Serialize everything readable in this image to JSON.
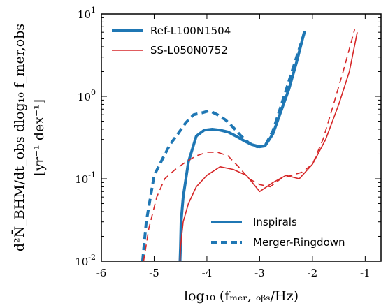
{
  "chart_data": {
    "type": "line",
    "xlabel": "log₁₀ (fₘₑᵣ, ₒᵦₛ/Hz)",
    "ylabel_line1": "d²N̄_BHM/dt_obs dlog₁₀ f_mer,obs",
    "ylabel_line2": "[yr⁻¹ dex⁻¹]",
    "xlim": [
      -6,
      -0.7
    ],
    "ylim_log10": [
      -2,
      1
    ],
    "y_scale": "log",
    "grid": false,
    "x_ticks": [
      -6,
      -5,
      -4,
      -3,
      -2,
      -1
    ],
    "x_tick_labels": [
      "-6",
      "-5",
      "-4",
      "-3",
      "-2",
      "-1"
    ],
    "y_ticks": [
      {
        "base": "10",
        "exp": "-2",
        "value": 0.01
      },
      {
        "base": "10",
        "exp": "-1",
        "value": 0.1
      },
      {
        "base": "10",
        "exp": "0",
        "value": 1
      },
      {
        "base": "10",
        "exp": "1",
        "value": 10
      }
    ],
    "legend_runs": {
      "placement": "top-left",
      "entries": [
        {
          "label": "Ref-L100N1504",
          "color": "#1f77b4",
          "style": "thick"
        },
        {
          "label": "SS-L050N0752",
          "color": "#d62728",
          "style": "thin"
        }
      ]
    },
    "legend_types": {
      "placement": "bottom-right",
      "entries": [
        {
          "label": "Inspirals",
          "color": "#1f77b4",
          "dash": "solid"
        },
        {
          "label": "Merger-Ringdown",
          "color": "#1f77b4",
          "dash": "dashed"
        }
      ]
    },
    "series": [
      {
        "color": "#1f77b4",
        "width": "thick",
        "dash": "solid",
        "x": [
          -4.51,
          -4.5,
          -4.49,
          -4.45,
          -4.35,
          -4.2,
          -4.05,
          -3.9,
          -3.75,
          -3.6,
          -3.45,
          -3.3,
          -3.15,
          -3.0,
          -2.9,
          -2.75,
          -2.6,
          -2.45,
          -2.3,
          -2.15
        ],
        "y": [
          0.01,
          0.015,
          0.03,
          0.06,
          0.16,
          0.33,
          0.39,
          0.4,
          0.39,
          0.37,
          0.33,
          0.29,
          0.26,
          0.245,
          0.25,
          0.35,
          0.65,
          1.2,
          2.6,
          6.2
        ]
      },
      {
        "color": "#1f77b4",
        "width": "thick",
        "dash": "dashed",
        "x": [
          -5.22,
          -5.15,
          -5.0,
          -4.85,
          -4.7,
          -4.55,
          -4.4,
          -4.25,
          -4.1,
          -3.95,
          -3.8,
          -3.65,
          -3.5,
          -3.35,
          -3.2,
          -3.05,
          -2.9,
          -2.75,
          -2.6,
          -2.45,
          -2.3,
          -2.15
        ],
        "y": [
          0.01,
          0.03,
          0.11,
          0.17,
          0.26,
          0.35,
          0.48,
          0.6,
          0.63,
          0.67,
          0.6,
          0.52,
          0.42,
          0.33,
          0.27,
          0.245,
          0.25,
          0.38,
          0.75,
          1.5,
          3.0,
          6.0
        ]
      },
      {
        "color": "#d62728",
        "width": "thin",
        "dash": "solid",
        "x": [
          -4.51,
          -4.5,
          -4.45,
          -4.35,
          -4.2,
          -4.0,
          -3.75,
          -3.5,
          -3.25,
          -3.0,
          -2.75,
          -2.5,
          -2.25,
          -2.0,
          -1.75,
          -1.5,
          -1.3,
          -1.15
        ],
        "y": [
          0.01,
          0.015,
          0.03,
          0.05,
          0.08,
          0.11,
          0.14,
          0.13,
          0.11,
          0.07,
          0.09,
          0.11,
          0.1,
          0.15,
          0.3,
          0.8,
          2.0,
          6.0
        ]
      },
      {
        "color": "#d62728",
        "width": "thin",
        "dash": "dashed",
        "x": [
          -5.2,
          -5.1,
          -4.95,
          -4.8,
          -4.6,
          -4.4,
          -4.2,
          -4.0,
          -3.8,
          -3.6,
          -3.4,
          -3.2,
          -3.0,
          -2.8,
          -2.6,
          -2.4,
          -2.2,
          -2.0,
          -1.8,
          -1.6,
          -1.4,
          -1.2
        ],
        "y": [
          0.01,
          0.025,
          0.06,
          0.1,
          0.13,
          0.16,
          0.19,
          0.21,
          0.21,
          0.19,
          0.14,
          0.1,
          0.085,
          0.08,
          0.1,
          0.11,
          0.12,
          0.15,
          0.3,
          0.8,
          2.2,
          6.5
        ]
      }
    ]
  }
}
